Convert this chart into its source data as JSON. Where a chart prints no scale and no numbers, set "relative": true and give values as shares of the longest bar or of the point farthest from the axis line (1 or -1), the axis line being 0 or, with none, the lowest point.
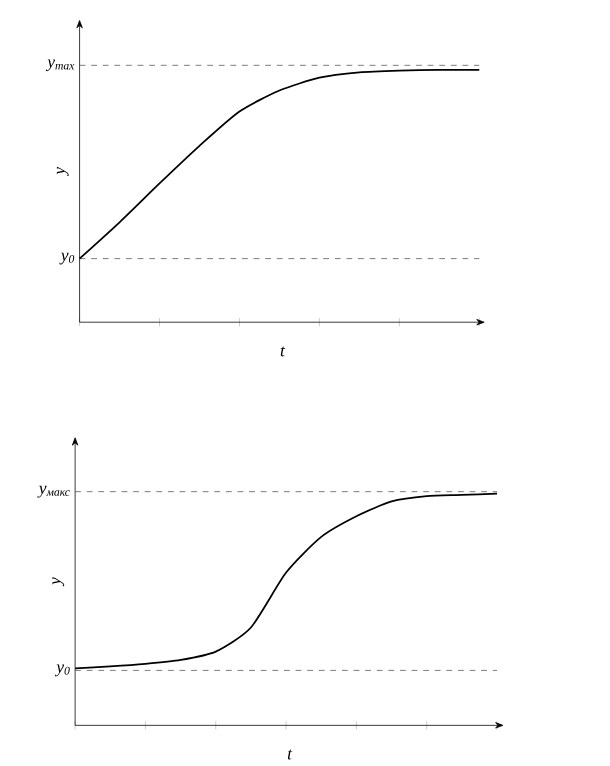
{
  "chart_data": [
    {
      "type": "line",
      "relative": true,
      "xlabel": "t",
      "ylabel": "y",
      "legend": false,
      "grid": false,
      "marker": "none",
      "line_style": "solid",
      "categories": [
        null,
        null,
        null,
        null,
        null,
        null,
        null,
        null,
        null,
        null,
        null
      ],
      "series": [
        {
          "color": "#000000",
          "values": [
            0.252,
            0.396,
            0.55,
            0.699,
            0.835,
            0.918,
            0.969,
            0.99,
            0.997,
            1,
            1
          ]
        }
      ],
      "ref_lines": [
        {
          "axis": "y",
          "value": 0.252,
          "label": "y$_{0}$",
          "color": "#555555",
          "line_style": "dashed"
        },
        {
          "axis": "y",
          "value": 1.018,
          "label": "y$_{max}$",
          "color": "#555555",
          "line_style": "dashed"
        }
      ]
    },
    {
      "type": "line",
      "relative": true,
      "xlabel": "t",
      "ylabel": "y",
      "legend": false,
      "grid": false,
      "marker": "none",
      "line_style": "solid",
      "categories": [
        null,
        null,
        null,
        null,
        null,
        null,
        null,
        null,
        null,
        null,
        null,
        null,
        null
      ],
      "series": [
        {
          "color": "#000000",
          "values": [
            0.246,
            0.254,
            0.265,
            0.282,
            0.318,
            0.422,
            0.659,
            0.813,
            0.902,
            0.966,
            0.989,
            0.994,
            1
          ]
        }
      ],
      "ref_lines": [
        {
          "axis": "y",
          "value": 0.237,
          "label": "y$_{0}$",
          "color": "#555555",
          "line_style": "dashed"
        },
        {
          "axis": "y",
          "value": 1.008,
          "label": "y$_{макс}$",
          "color": "#555555",
          "line_style": "dashed"
        }
      ]
    }
  ]
}
